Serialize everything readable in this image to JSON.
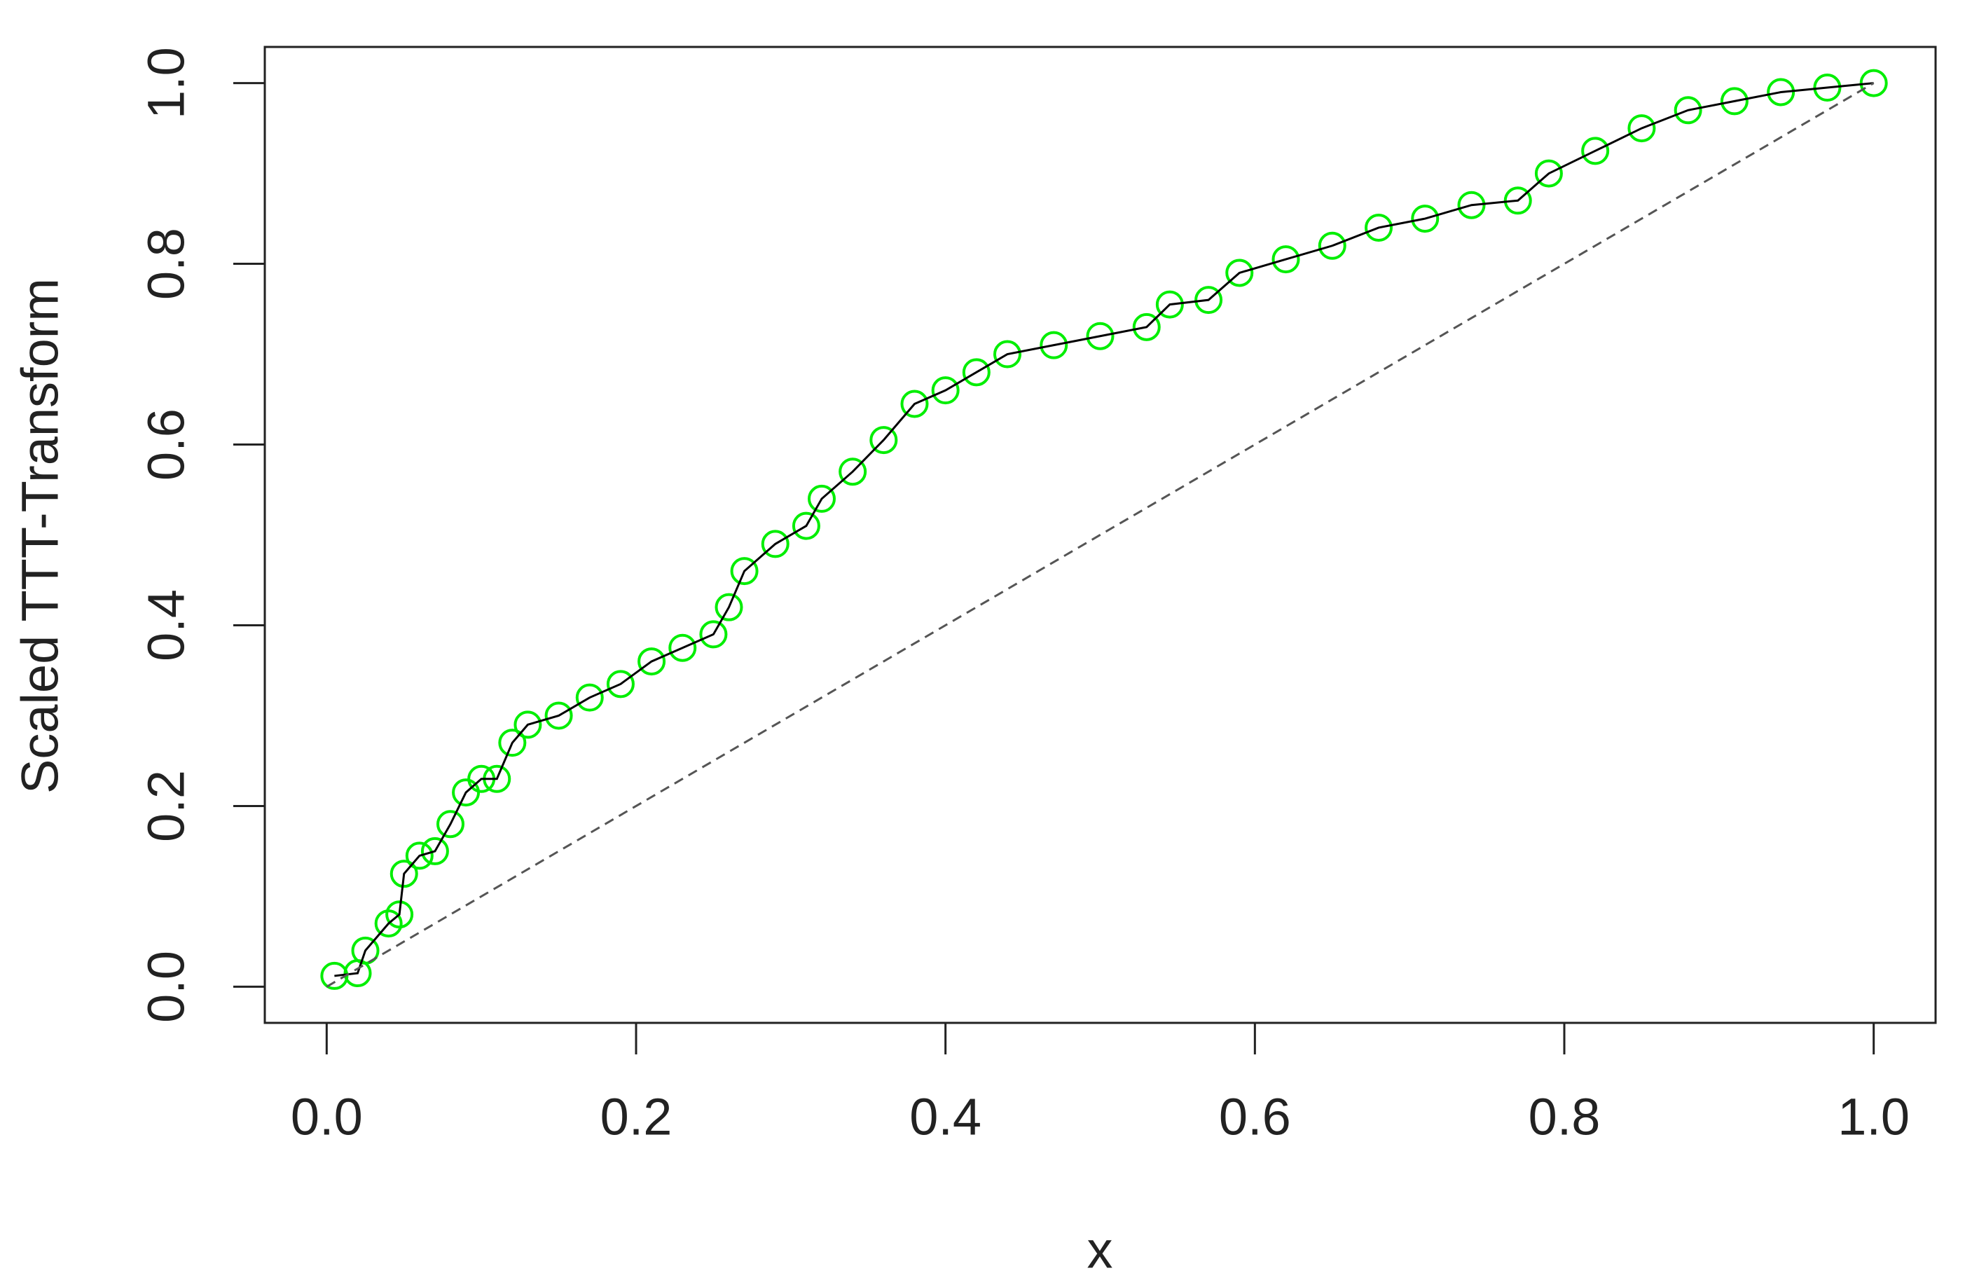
{
  "chart_data": {
    "type": "line",
    "xlabel": "x",
    "ylabel": "Scaled TTT-Transform",
    "xlim": [
      -0.04,
      1.04
    ],
    "ylim": [
      -0.04,
      1.04
    ],
    "xticks": [
      {
        "value": 0,
        "label": "0.0"
      },
      0.2,
      0.4,
      0.6,
      0.8,
      {
        "value": 1,
        "label": "1.0"
      }
    ],
    "yticks": [
      {
        "value": 0,
        "label": "0.0"
      },
      0.2,
      0.4,
      0.6,
      0.8,
      {
        "value": 1,
        "label": "1.0"
      }
    ],
    "grid": false,
    "series": [
      {
        "color": "#00ee00",
        "line_color": "#000000",
        "marker": "circle",
        "x": [
          0.005,
          0.02,
          0.025,
          0.04,
          0.047,
          0.05,
          0.06,
          0.07,
          0.08,
          0.09,
          0.1,
          0.11,
          0.12,
          0.13,
          0.15,
          0.17,
          0.19,
          0.21,
          0.23,
          0.25,
          0.26,
          0.27,
          0.29,
          0.31,
          0.32,
          0.34,
          0.36,
          0.38,
          0.4,
          0.42,
          0.44,
          0.47,
          0.5,
          0.53,
          0.545,
          0.57,
          0.59,
          0.62,
          0.65,
          0.68,
          0.71,
          0.74,
          0.77,
          0.79,
          0.82,
          0.85,
          0.88,
          0.91,
          0.94,
          0.97,
          1.0
        ],
        "values": [
          0.012,
          0.015,
          0.04,
          0.07,
          0.08,
          0.125,
          0.145,
          0.15,
          0.18,
          0.215,
          0.23,
          0.23,
          0.27,
          0.29,
          0.3,
          0.32,
          0.335,
          0.36,
          0.375,
          0.39,
          0.42,
          0.46,
          0.49,
          0.51,
          0.54,
          0.57,
          0.605,
          0.645,
          0.66,
          0.68,
          0.7,
          0.71,
          0.72,
          0.73,
          0.755,
          0.76,
          0.79,
          0.805,
          0.82,
          0.84,
          0.85,
          0.865,
          0.87,
          0.9,
          0.925,
          0.95,
          0.97,
          0.98,
          0.99,
          0.995,
          1.0
        ]
      },
      {
        "color": "#555555",
        "dashed": true,
        "x": [
          0,
          1
        ],
        "values": [
          0,
          1
        ]
      }
    ]
  }
}
